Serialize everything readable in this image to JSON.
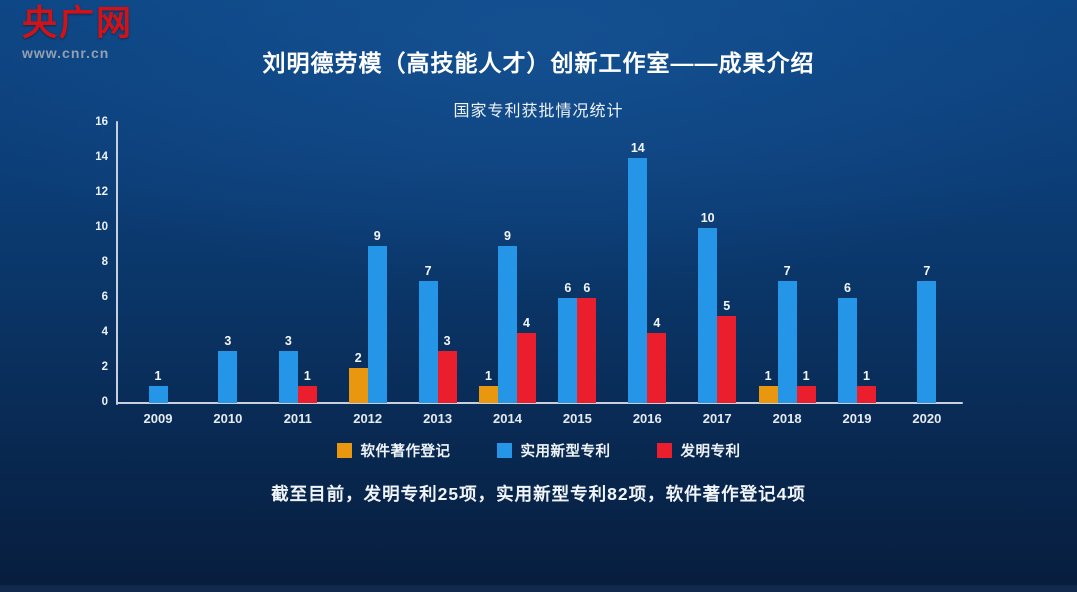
{
  "logo": {
    "name": "央广网",
    "url": "www.cnr.cn",
    "brand_color": "#cf1318"
  },
  "header": {
    "title": "刘明德劳模（高技能人才）创新工作室——成果介绍"
  },
  "chart_data": {
    "type": "bar",
    "title": "国家专利获批情况统计",
    "categories": [
      "2009",
      "2010",
      "2011",
      "2012",
      "2013",
      "2014",
      "2015",
      "2016",
      "2017",
      "2018",
      "2019",
      "2020"
    ],
    "series": [
      {
        "name": "软件著作登记",
        "color": "#e9970f",
        "values": [
          null,
          null,
          null,
          2,
          null,
          1,
          null,
          null,
          null,
          1,
          null,
          null
        ]
      },
      {
        "name": "实用新型专利",
        "color": "#2595e8",
        "values": [
          1,
          3,
          3,
          9,
          7,
          9,
          6,
          14,
          10,
          7,
          6,
          7
        ]
      },
      {
        "name": "发明专利",
        "color": "#eb1e2d",
        "values": [
          null,
          null,
          1,
          null,
          3,
          4,
          6,
          4,
          5,
          1,
          1,
          null
        ]
      }
    ],
    "ylim": [
      0,
      16
    ],
    "ytick_step": 2,
    "grid": false,
    "legend_position": "bottom",
    "axis_color": "#c7d1de"
  },
  "footer": {
    "note": "截至目前，发明专利25项，实用新型专利82项，软件著作登记4项"
  }
}
